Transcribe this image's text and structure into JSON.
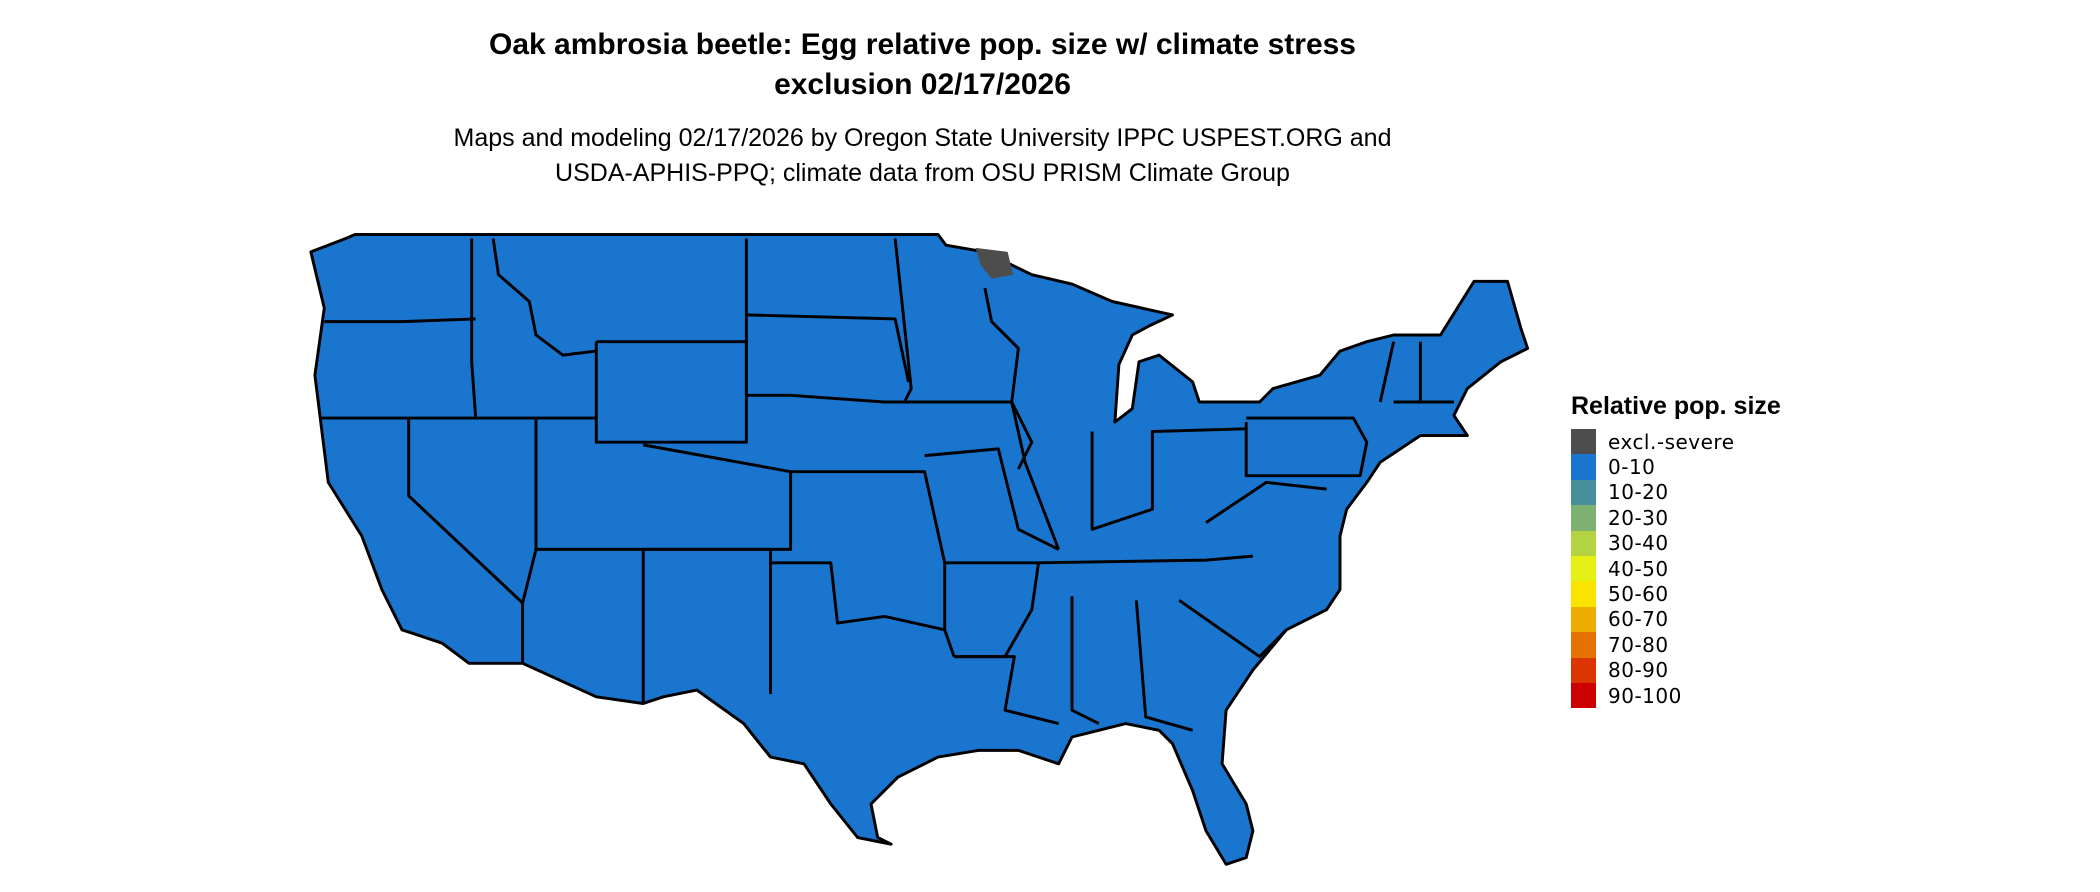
{
  "title": {
    "line1": "Oak ambrosia beetle: Egg relative pop. size w/ climate stress",
    "line2": "exclusion 02/17/2026"
  },
  "subtitle": {
    "line1": "Maps and modeling 02/17/2026 by Oregon State University IPPC USPEST.ORG and",
    "line2": "USDA-APHIS-PPQ; climate data from OSU PRISM Climate Group"
  },
  "legend": {
    "title": "Relative pop. size",
    "items": [
      {
        "label": "excl.-severe",
        "color": "#4d4d4d"
      },
      {
        "label": "0-10",
        "color": "#1a75cf"
      },
      {
        "label": "10-20",
        "color": "#478f9d"
      },
      {
        "label": "20-30",
        "color": "#7eb072"
      },
      {
        "label": "30-40",
        "color": "#b3d343"
      },
      {
        "label": "40-50",
        "color": "#e5f014"
      },
      {
        "label": "50-60",
        "color": "#f9e400"
      },
      {
        "label": "60-70",
        "color": "#eeab00"
      },
      {
        "label": "70-80",
        "color": "#e57200"
      },
      {
        "label": "80-90",
        "color": "#db3600"
      },
      {
        "label": "90-100",
        "color": "#cc0000"
      }
    ]
  },
  "map_data": {
    "region": "Contiguous United States",
    "dominant_class": "0-10",
    "dominant_color": "#1a75cf",
    "minor_areas": [
      {
        "class": "excl.-severe",
        "location": "northeastern Minnesota",
        "color": "#4d4d4d"
      }
    ],
    "border_color": "#000000"
  }
}
